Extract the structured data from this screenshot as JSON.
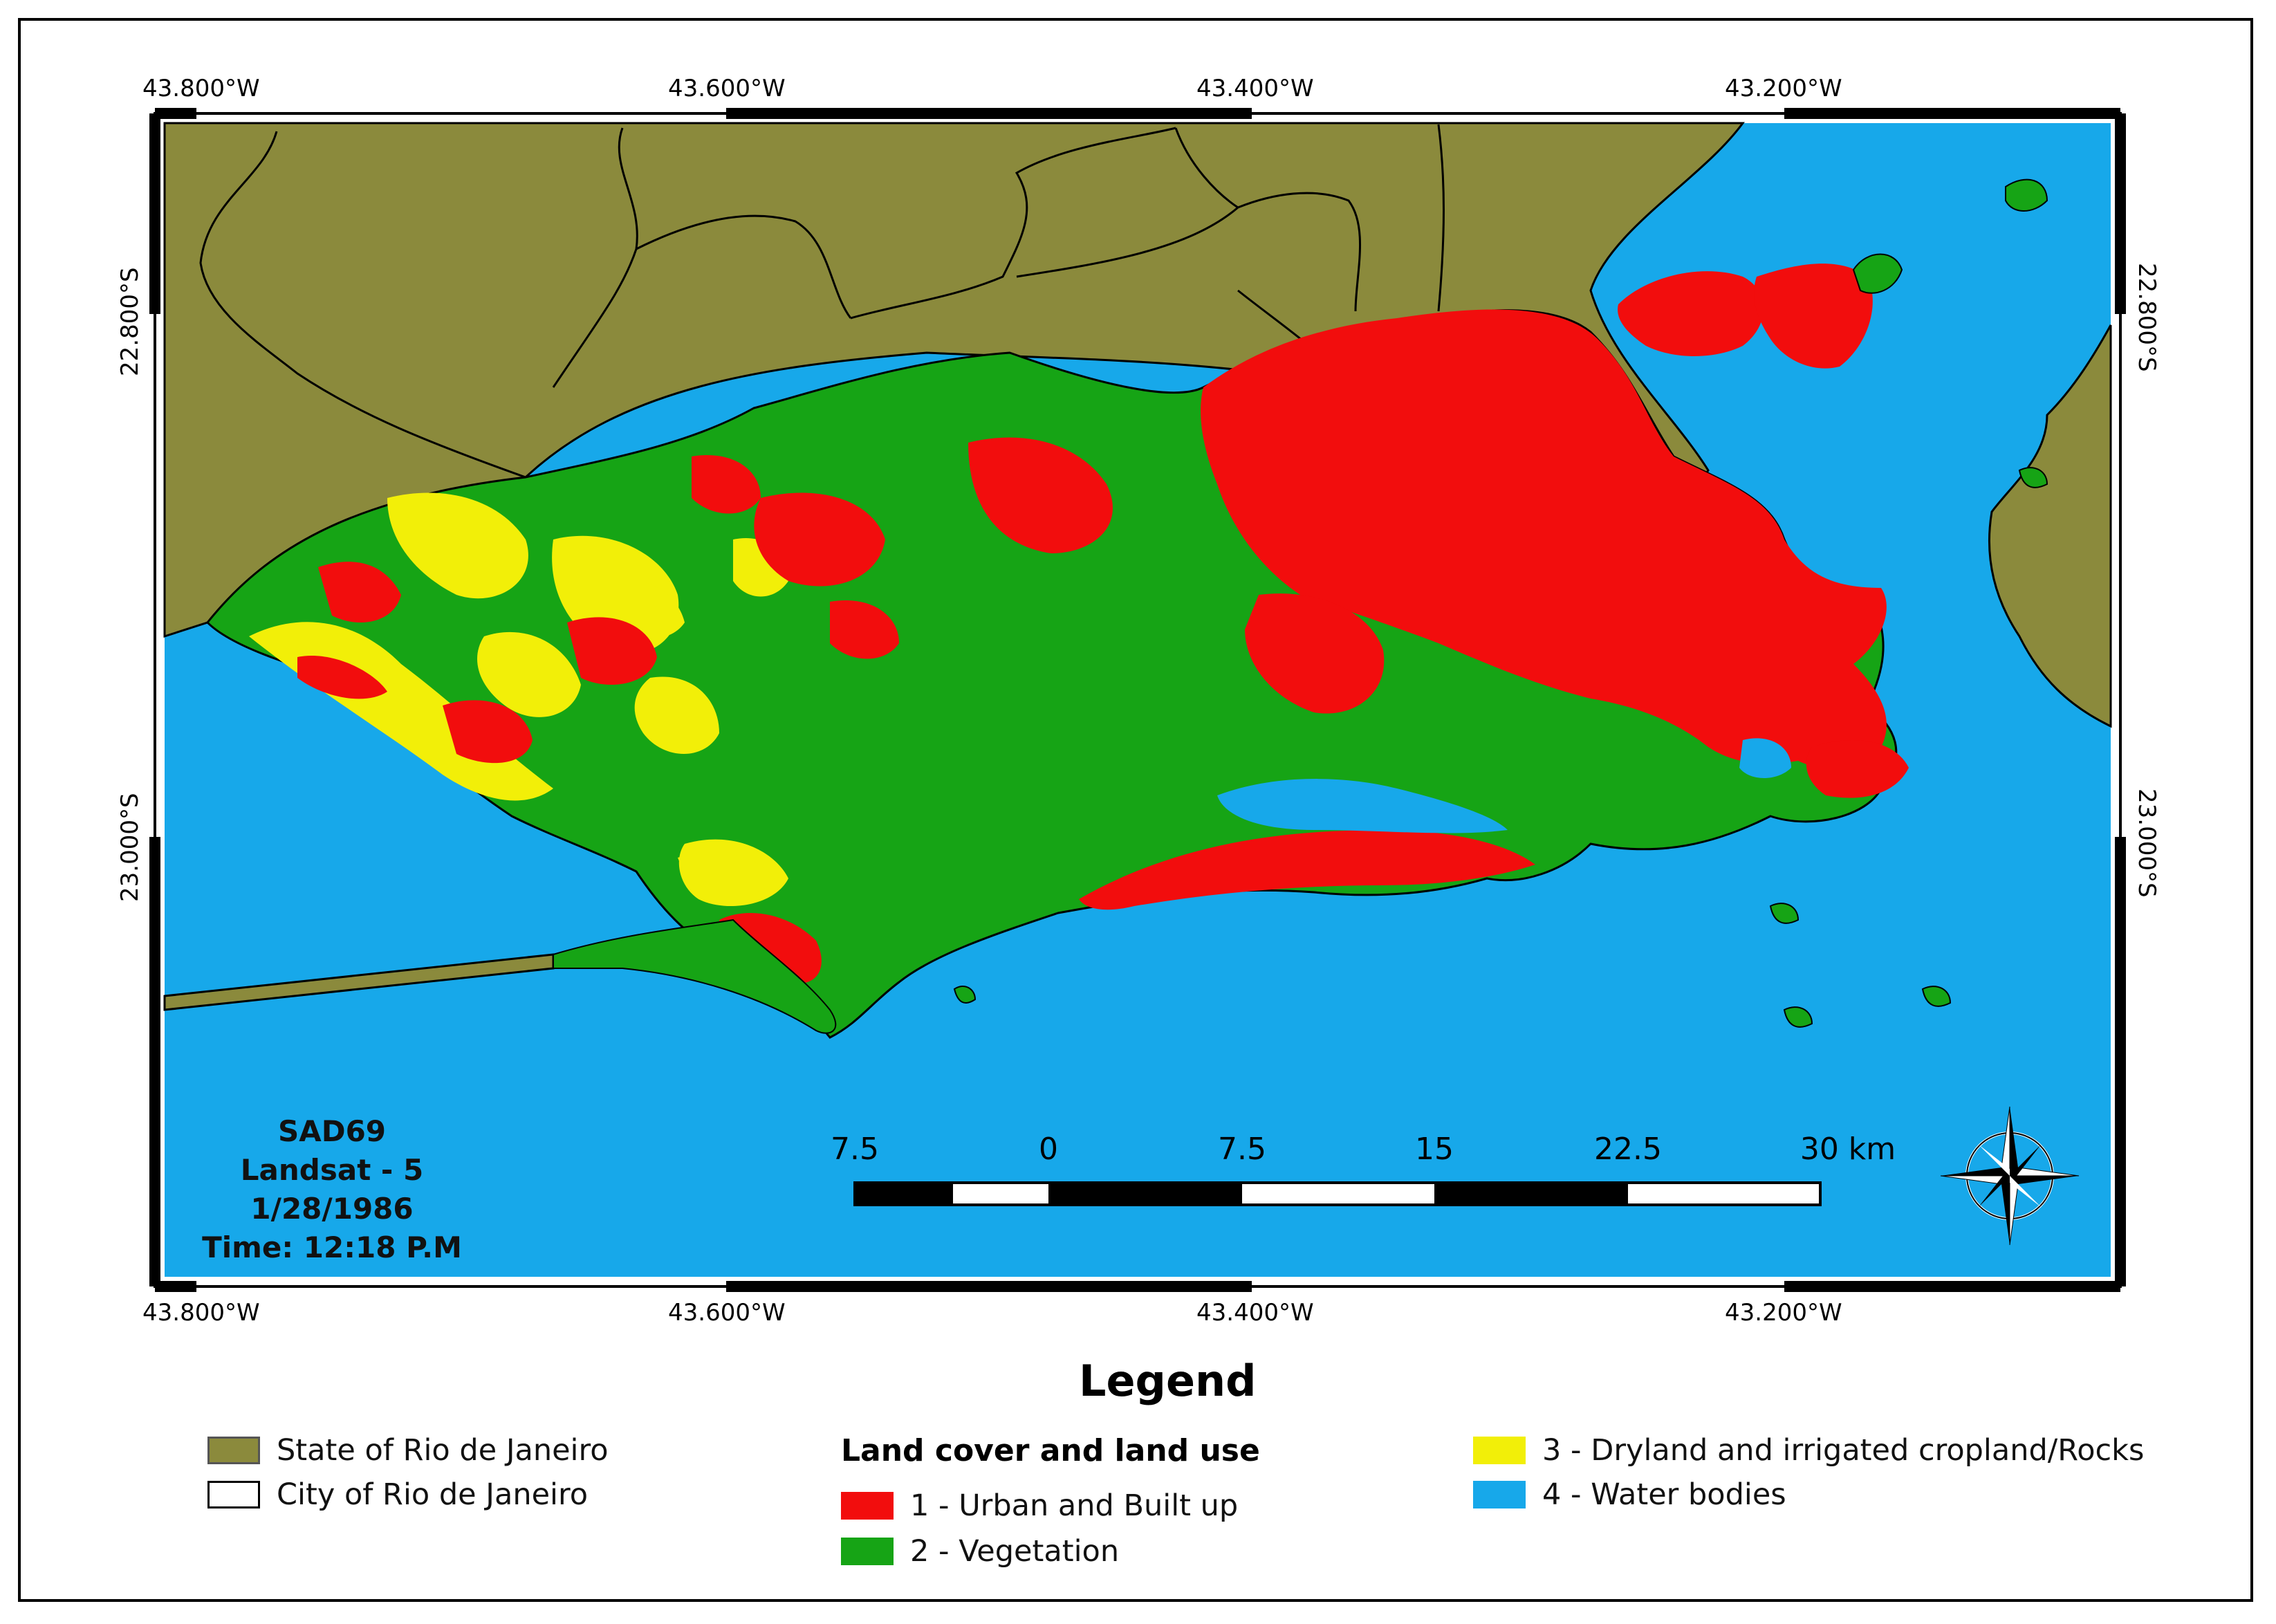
{
  "colors": {
    "state": "#8b8a3c",
    "city_border": "#000000",
    "urban": "#f20d0d",
    "vegetation": "#16a415",
    "cropland": "#f2ef08",
    "water": "#17a8ea"
  },
  "grid": {
    "top_lons": [
      "43.800°W",
      "43.600°W",
      "43.400°W",
      "43.200°W"
    ],
    "bottom_lons": [
      "43.800°W",
      "43.600°W",
      "43.400°W",
      "43.200°W"
    ],
    "left_lats": [
      "22.800°S",
      "23.000°S"
    ],
    "right_lats": [
      "22.800°S",
      "23.000°S"
    ]
  },
  "info": {
    "datum": "SAD69",
    "satellite": "Landsat - 5",
    "date": "1/28/1986",
    "time": "Time: 12:18 P.M"
  },
  "scale_bar": {
    "labels": [
      "7.5",
      "0",
      "7.5",
      "15",
      "22.5",
      "30 km"
    ]
  },
  "compass": {
    "icon": "compass-rose-icon"
  },
  "legend": {
    "title": "Legend",
    "state_label": "State of Rio de Janeiro",
    "city_label": "City of Rio de Janeiro",
    "landcover_heading": "Land cover and land use",
    "class1": "1 - Urban and Built up",
    "class2": "2 - Vegetation",
    "class3": "3 - Dryland and irrigated cropland/Rocks",
    "class4": "4 - Water bodies"
  }
}
